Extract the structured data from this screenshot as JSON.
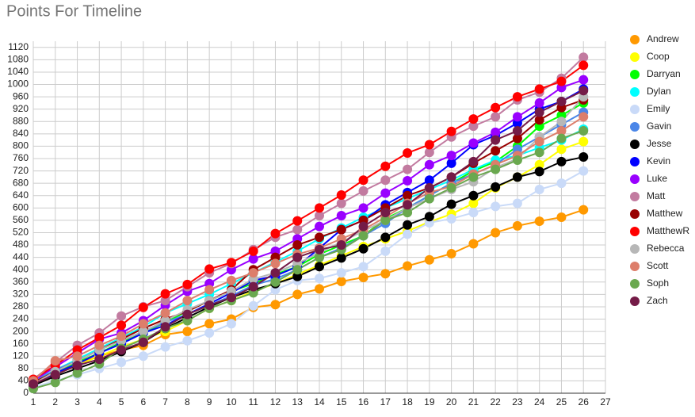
{
  "chart_data": {
    "type": "line",
    "title": "Points For Timeline",
    "x": [
      1,
      2,
      3,
      4,
      5,
      6,
      7,
      8,
      9,
      10,
      11,
      12,
      13,
      14,
      15,
      16,
      17,
      18,
      19,
      20,
      21,
      22,
      23,
      24,
      25,
      26
    ],
    "xlim": [
      1,
      27
    ],
    "xticks": [
      1,
      2,
      3,
      4,
      5,
      6,
      7,
      8,
      9,
      10,
      11,
      12,
      13,
      14,
      15,
      16,
      17,
      18,
      19,
      20,
      21,
      22,
      23,
      24,
      25,
      26,
      27
    ],
    "ylim": [
      0,
      1140
    ],
    "yticks": [
      0,
      40,
      80,
      120,
      160,
      200,
      240,
      280,
      320,
      360,
      400,
      440,
      480,
      520,
      560,
      600,
      640,
      680,
      720,
      760,
      800,
      840,
      880,
      920,
      960,
      1000,
      1040,
      1080,
      1120
    ],
    "grid": true,
    "legend": "right",
    "series": [
      {
        "name": "Andrew",
        "color": "#ff9900",
        "values": [
          35,
          70,
          95,
          120,
          140,
          155,
          190,
          200,
          225,
          240,
          278,
          287,
          320,
          338,
          362,
          375,
          387,
          412,
          432,
          452,
          484,
          520,
          542,
          557,
          570,
          594
        ]
      },
      {
        "name": "Coop",
        "color": "#ffff00",
        "values": [
          30,
          60,
          90,
          120,
          150,
          175,
          200,
          235,
          275,
          300,
          330,
          355,
          385,
          415,
          445,
          475,
          500,
          525,
          555,
          580,
          615,
          665,
          700,
          740,
          790,
          815
        ]
      },
      {
        "name": "Darryan",
        "color": "#00ff00",
        "values": [
          35,
          65,
          100,
          130,
          165,
          195,
          230,
          265,
          300,
          330,
          355,
          385,
          410,
          450,
          480,
          510,
          565,
          600,
          640,
          680,
          720,
          750,
          800,
          865,
          900,
          940
        ]
      },
      {
        "name": "Dylan",
        "color": "#00ffff",
        "values": [
          40,
          75,
          110,
          145,
          180,
          215,
          260,
          290,
          320,
          355,
          390,
          425,
          460,
          500,
          535,
          570,
          600,
          630,
          660,
          690,
          725,
          755,
          770,
          795,
          820,
          855
        ]
      },
      {
        "name": "Emily",
        "color": "#c9daf8",
        "values": [
          20,
          40,
          60,
          80,
          100,
          120,
          150,
          170,
          195,
          225,
          283,
          335,
          365,
          372,
          390,
          410,
          460,
          515,
          552,
          565,
          585,
          605,
          615,
          660,
          680,
          720
        ]
      },
      {
        "name": "Gavin",
        "color": "#4a86e8",
        "values": [
          35,
          75,
          105,
          140,
          170,
          200,
          230,
          255,
          285,
          315,
          350,
          370,
          400,
          440,
          470,
          510,
          550,
          600,
          640,
          680,
          710,
          740,
          790,
          830,
          870,
          910
        ]
      },
      {
        "name": "Jesse",
        "color": "#000000",
        "values": [
          25,
          55,
          80,
          105,
          135,
          165,
          210,
          245,
          280,
          310,
          335,
          355,
          378,
          410,
          438,
          468,
          505,
          545,
          572,
          612,
          640,
          668,
          700,
          718,
          750,
          765
        ]
      },
      {
        "name": "Kevin",
        "color": "#0000ff",
        "values": [
          30,
          65,
          95,
          130,
          160,
          195,
          220,
          255,
          290,
          325,
          365,
          380,
          410,
          470,
          530,
          560,
          610,
          650,
          690,
          745,
          805,
          835,
          875,
          920,
          945,
          985
        ]
      },
      {
        "name": "Luke",
        "color": "#9900ff",
        "values": [
          40,
          85,
          130,
          175,
          195,
          235,
          285,
          330,
          355,
          400,
          435,
          460,
          500,
          540,
          575,
          600,
          648,
          688,
          740,
          770,
          810,
          845,
          895,
          940,
          990,
          1015
        ]
      },
      {
        "name": "Matt",
        "color": "#c27ba0",
        "values": [
          45,
          100,
          155,
          195,
          250,
          280,
          300,
          345,
          390,
          420,
          465,
          505,
          530,
          575,
          615,
          655,
          690,
          725,
          780,
          830,
          865,
          895,
          950,
          975,
          1020,
          1088
        ]
      },
      {
        "name": "Matthew",
        "color": "#990000",
        "values": [
          35,
          70,
          105,
          140,
          175,
          210,
          240,
          265,
          300,
          335,
          400,
          440,
          480,
          505,
          530,
          560,
          600,
          640,
          665,
          700,
          745,
          785,
          825,
          885,
          925,
          950
        ]
      },
      {
        "name": "MatthewR",
        "color": "#ff0000",
        "values": [
          45,
          90,
          140,
          180,
          220,
          278,
          322,
          352,
          402,
          423,
          460,
          517,
          558,
          600,
          642,
          690,
          735,
          778,
          805,
          848,
          888,
          925,
          960,
          985,
          1010,
          1062
        ]
      },
      {
        "name": "Rebecca",
        "color": "#b7b7b7",
        "values": [
          30,
          70,
          105,
          140,
          170,
          200,
          235,
          270,
          300,
          330,
          370,
          390,
          420,
          455,
          490,
          525,
          560,
          600,
          630,
          660,
          685,
          730,
          760,
          830,
          880,
          960
        ]
      },
      {
        "name": "Scott",
        "color": "#dd7e6b",
        "values": [
          40,
          105,
          120,
          155,
          185,
          225,
          260,
          300,
          335,
          365,
          390,
          420,
          450,
          470,
          500,
          530,
          570,
          615,
          650,
          670,
          710,
          740,
          770,
          815,
          850,
          895
        ]
      },
      {
        "name": "Soph",
        "color": "#6aa84f",
        "values": [
          15,
          35,
          65,
          95,
          145,
          175,
          210,
          235,
          275,
          300,
          325,
          360,
          400,
          440,
          465,
          510,
          560,
          585,
          630,
          665,
          700,
          725,
          755,
          780,
          825,
          850
        ]
      },
      {
        "name": "Zach",
        "color": "#741b47",
        "values": [
          30,
          60,
          90,
          110,
          140,
          165,
          215,
          255,
          285,
          310,
          345,
          390,
          440,
          465,
          480,
          540,
          585,
          610,
          665,
          700,
          750,
          820,
          850,
          910,
          945,
          980
        ]
      }
    ]
  }
}
